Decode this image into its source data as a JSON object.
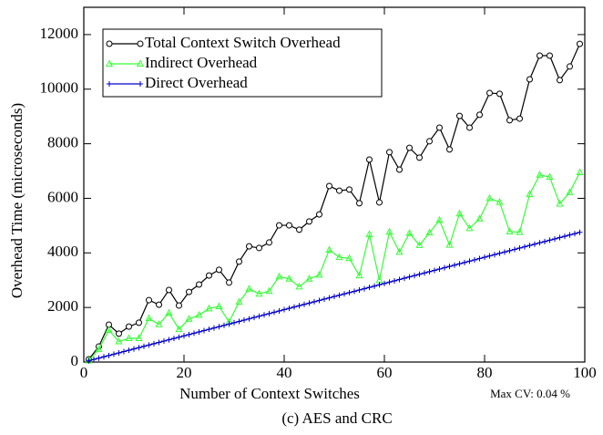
{
  "chart_data": {
    "type": "line",
    "caption": "(c) AES and CRC",
    "xlabel": "Number of Context Switches",
    "ylabel": "Overhead Time (microseconds)",
    "annotation": "Max CV: 0.04 %",
    "xlim": [
      0,
      100
    ],
    "xticks": [
      0,
      20,
      40,
      60,
      80,
      100
    ],
    "ylim": [
      0,
      13000
    ],
    "yticks": [
      0,
      2000,
      4000,
      6000,
      8000,
      10000,
      12000
    ],
    "legend": "upper left",
    "series": [
      {
        "name": "Total Context Switch Overhead",
        "color": "#000000",
        "marker": "circle",
        "x": [
          1,
          3,
          5,
          7,
          9,
          11,
          13,
          15,
          17,
          19,
          21,
          23,
          25,
          27,
          29,
          31,
          33,
          35,
          37,
          39,
          41,
          43,
          45,
          47,
          49,
          51,
          53,
          55,
          57,
          59,
          61,
          63,
          65,
          67,
          69,
          71,
          73,
          75,
          77,
          79,
          81,
          83,
          85,
          87,
          89,
          91,
          93,
          95,
          97,
          99
        ],
        "values": [
          100,
          570,
          1370,
          1040,
          1300,
          1440,
          2270,
          2100,
          2640,
          2070,
          2570,
          2840,
          3170,
          3380,
          2910,
          3680,
          4240,
          4180,
          4380,
          5010,
          5010,
          4850,
          5150,
          5410,
          6450,
          6280,
          6320,
          5820,
          7420,
          5850,
          7690,
          7050,
          7850,
          7490,
          8090,
          8590,
          7790,
          9020,
          8590,
          9060,
          9860,
          9830,
          8860,
          8920,
          10360,
          11230,
          11230,
          10330,
          10830,
          11660
        ]
      },
      {
        "name": "Indirect Overhead",
        "color": "#33ff33",
        "marker": "triangle",
        "x": [
          1,
          3,
          5,
          7,
          9,
          11,
          13,
          15,
          17,
          19,
          21,
          23,
          25,
          27,
          29,
          31,
          33,
          35,
          37,
          39,
          41,
          43,
          45,
          47,
          49,
          51,
          53,
          55,
          57,
          59,
          61,
          63,
          65,
          67,
          69,
          71,
          73,
          75,
          77,
          79,
          81,
          83,
          85,
          87,
          89,
          91,
          93,
          95,
          97,
          99
        ],
        "values": [
          50,
          470,
          1170,
          750,
          870,
          870,
          1600,
          1380,
          1800,
          1200,
          1580,
          1720,
          1960,
          2040,
          1470,
          2200,
          2680,
          2500,
          2600,
          3130,
          3050,
          2760,
          3050,
          3190,
          4110,
          3840,
          3800,
          3170,
          4680,
          3000,
          4770,
          4030,
          4720,
          4280,
          4740,
          5200,
          4290,
          5440,
          4900,
          5250,
          6000,
          5860,
          4780,
          4760,
          6150,
          6860,
          6780,
          5800,
          6220,
          6950
        ]
      },
      {
        "name": "Direct Overhead",
        "color": "#0000cc",
        "marker": "plus",
        "x": [
          1,
          2,
          3,
          4,
          5,
          6,
          7,
          8,
          9,
          10,
          11,
          12,
          13,
          14,
          15,
          16,
          17,
          18,
          19,
          20,
          21,
          22,
          23,
          24,
          25,
          26,
          27,
          28,
          29,
          30,
          31,
          32,
          33,
          34,
          35,
          36,
          37,
          38,
          39,
          40,
          41,
          42,
          43,
          44,
          45,
          46,
          47,
          48,
          49,
          50,
          51,
          52,
          53,
          54,
          55,
          56,
          57,
          58,
          59,
          60,
          61,
          62,
          63,
          64,
          65,
          66,
          67,
          68,
          69,
          70,
          71,
          72,
          73,
          74,
          75,
          76,
          77,
          78,
          79,
          80,
          81,
          82,
          83,
          84,
          85,
          86,
          87,
          88,
          89,
          90,
          91,
          92,
          93,
          94,
          95,
          96,
          97,
          98,
          99
        ],
        "values": [
          48,
          96,
          144,
          192,
          240,
          288,
          336,
          384,
          432,
          480,
          528,
          576,
          624,
          672,
          720,
          768,
          816,
          864,
          912,
          960,
          1008,
          1056,
          1104,
          1152,
          1200,
          1248,
          1296,
          1344,
          1392,
          1440,
          1488,
          1536,
          1584,
          1632,
          1680,
          1728,
          1776,
          1824,
          1872,
          1920,
          1968,
          2016,
          2064,
          2112,
          2160,
          2208,
          2256,
          2304,
          2352,
          2400,
          2448,
          2496,
          2544,
          2592,
          2640,
          2688,
          2736,
          2784,
          2832,
          2880,
          2928,
          2976,
          3024,
          3072,
          3120,
          3168,
          3216,
          3264,
          3312,
          3360,
          3408,
          3456,
          3504,
          3552,
          3600,
          3648,
          3696,
          3744,
          3792,
          3840,
          3888,
          3936,
          3984,
          4032,
          4080,
          4128,
          4176,
          4224,
          4272,
          4320,
          4368,
          4416,
          4464,
          4512,
          4560,
          4608,
          4656,
          4704,
          4752
        ]
      }
    ]
  }
}
